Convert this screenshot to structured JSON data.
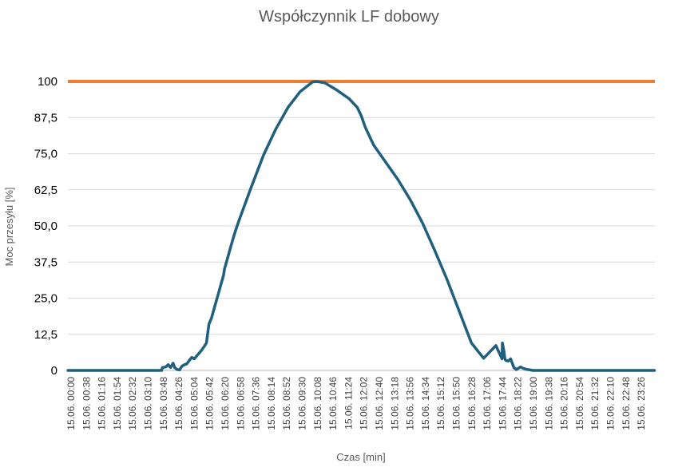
{
  "chart_data": {
    "type": "line",
    "title": "Współczynnik LF dobowy",
    "xlabel": "Czas [min]",
    "ylabel": "Moc przesyłu [%]",
    "ylim": [
      0,
      100
    ],
    "yticks": [
      "0",
      "12,5",
      "25,0",
      "37,5",
      "50,0",
      "62,5",
      "75,0",
      "87,5",
      "100"
    ],
    "grid": true,
    "legend": "none",
    "colors": {
      "series": "#1f5f7f",
      "reference": "#ed7d31",
      "grid": "#d9d9d9",
      "baseline": "#d9d9d9"
    },
    "x_tick_labels": [
      "15.06. 00:00",
      "15.06. 00:38",
      "15.06. 01:16",
      "15.06. 01:54",
      "15.06. 02:32",
      "15.06. 03:10",
      "15.06. 03:48",
      "15.06. 04:26",
      "15.06. 05:04",
      "15.06. 05:42",
      "15.06. 06:20",
      "15.06. 06:58",
      "15.06. 07:36",
      "15.06. 08:14",
      "15.06. 08:52",
      "15.06. 09:30",
      "15.06. 10:08",
      "15.06. 10:46",
      "15.06. 11:24",
      "15.06. 12:02",
      "15.06. 12:40",
      "15.06. 13:18",
      "15.06. 13:56",
      "15.06. 14:34",
      "15.06. 15:12",
      "15.06. 15:50",
      "15.06. 16:28",
      "15.06. 17:06",
      "15.06. 17:44",
      "15.06. 18:22",
      "15.06. 19:00",
      "15.06. 19:38",
      "15.06. 20:16",
      "15.06. 20:54",
      "15.06. 21:32",
      "15.06. 22:10",
      "15.06. 22:48",
      "15.06. 23:26"
    ],
    "series": [
      {
        "x": [
          "00:00",
          "01:00",
          "02:00",
          "03:00",
          "03:50",
          "03:52",
          "04:00",
          "04:06",
          "04:12",
          "04:18",
          "04:22",
          "04:28",
          "04:34",
          "04:40",
          "04:46",
          "04:52",
          "04:58",
          "05:04",
          "05:10",
          "05:16",
          "05:22",
          "05:28",
          "05:34",
          "05:40",
          "05:46",
          "05:52",
          "05:58",
          "06:04",
          "06:10",
          "06:16",
          "06:22",
          "06:24",
          "06:30",
          "06:36",
          "06:42",
          "06:48",
          "06:54",
          "07:00",
          "07:30",
          "08:00",
          "08:30",
          "09:00",
          "09:30",
          "10:00",
          "10:10",
          "10:30",
          "11:00",
          "11:30",
          "11:50",
          "12:00",
          "12:10",
          "12:30",
          "13:00",
          "13:30",
          "14:00",
          "14:30",
          "15:00",
          "15:30",
          "16:00",
          "16:30",
          "17:00",
          "17:30",
          "17:45",
          "17:46",
          "17:48",
          "17:50",
          "17:52",
          "17:54",
          "18:00",
          "18:06",
          "18:10",
          "18:14",
          "18:20",
          "18:26",
          "18:30",
          "18:36",
          "18:42",
          "18:48",
          "18:54",
          "19:00",
          "19:06",
          "19:12",
          "19:18",
          "19:24",
          "19:30",
          "19:36",
          "19:42",
          "19:48",
          "19:54",
          "20:00",
          "20:10",
          "20:20",
          "21:00",
          "22:00",
          "23:00",
          "23:59"
        ],
        "y": [
          0,
          0,
          0,
          0,
          0,
          1,
          1.2,
          2,
          1,
          2.5,
          1,
          0.3,
          0.2,
          1.5,
          2,
          2.3,
          3.5,
          4.5,
          4,
          5,
          6,
          7,
          8.2,
          9.5,
          16,
          18,
          21,
          24,
          27,
          30,
          33,
          35,
          38,
          41,
          44,
          47,
          49.5,
          52,
          63.5,
          74.5,
          83.5,
          91,
          96.5,
          99.8,
          100,
          99.5,
          97,
          94,
          91,
          88,
          84,
          78,
          72,
          66,
          59,
          51,
          41.5,
          31.5,
          20.5,
          9.5,
          4.2,
          8.6,
          4,
          9.5,
          8,
          6.5,
          4,
          3.5,
          3.2,
          4,
          2.5,
          1,
          0.3,
          0.8,
          1.2,
          0.8,
          0.5,
          0.3,
          0.2,
          0,
          0,
          0,
          0,
          0,
          0,
          0,
          0,
          0,
          0,
          0,
          0,
          0,
          0,
          0,
          0,
          0
        ],
        "x_extra_note": "",
        "y_values_note": ""
      },
      {
        "x": [
          "00:00",
          "23:59"
        ],
        "y": [
          100,
          100
        ]
      }
    ]
  }
}
